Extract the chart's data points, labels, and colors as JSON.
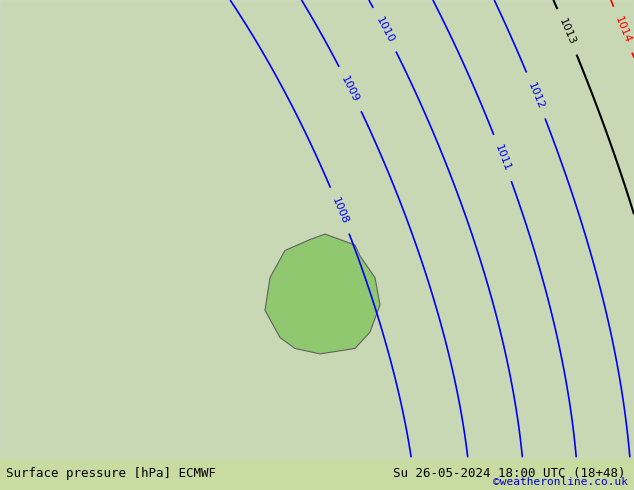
{
  "title_left": "Surface pressure [hPa] ECMWF",
  "title_right": "Su 26-05-2024 18:00 UTC (18+48)",
  "copyright": "©weatheronline.co.uk",
  "bg_color": "#c8e6a0",
  "land_color": "#d4d4d4",
  "sea_color": "#e8e8e8",
  "isobar_color_red": "#ff0000",
  "isobar_color_blue": "#0000ff",
  "isobar_color_black": "#000000",
  "label_fontsize": 9,
  "footer_fontsize": 10
}
